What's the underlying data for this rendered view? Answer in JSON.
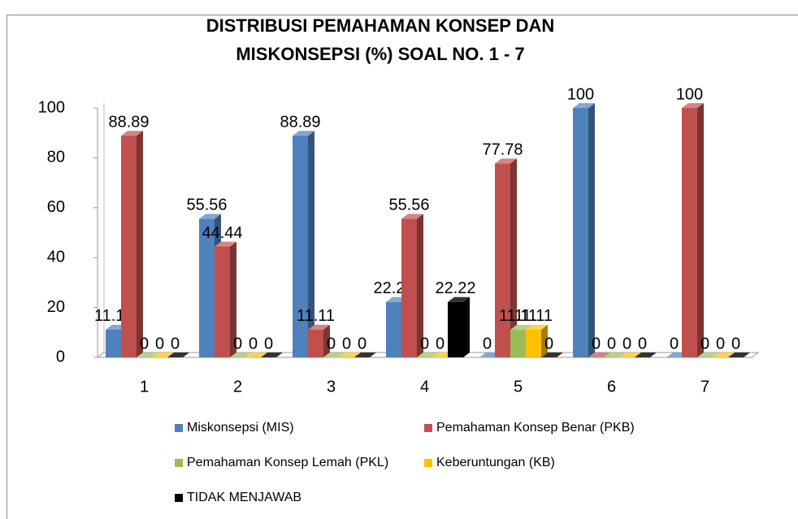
{
  "chart_data": {
    "type": "bar3d",
    "title": [
      "DISTRIBUSI PEMAHAMAN KONSEP DAN",
      "MISKONSEPSI (%) SOAL NO. 1 - 7"
    ],
    "categories": [
      "1",
      "2",
      "3",
      "4",
      "5",
      "6",
      "7"
    ],
    "series": [
      {
        "name": "Miskonsepsi (MIS)",
        "color": "#4f81bd",
        "values": [
          11.11,
          55.56,
          88.89,
          22.22,
          0,
          100,
          0
        ]
      },
      {
        "name": "Pemahaman Konsep Benar (PKB)",
        "color": "#c0504d",
        "values": [
          88.89,
          44.44,
          11.11,
          55.56,
          77.78,
          0,
          100
        ]
      },
      {
        "name": "Pemahaman Konsep Lemah (PKL)",
        "color": "#9bbb59",
        "values": [
          0,
          0,
          0,
          0,
          11.11,
          0,
          0
        ]
      },
      {
        "name": "Keberuntungan (KB)",
        "color": "#ffc000",
        "values": [
          0,
          0,
          0,
          0,
          11.11,
          0,
          0
        ]
      },
      {
        "name": "TIDAK MENJAWAB",
        "color": "#000000",
        "values": [
          0,
          0,
          0,
          22.22,
          0,
          0,
          0
        ]
      }
    ],
    "ylim": [
      0,
      100
    ],
    "yticks": [
      0,
      20,
      40,
      60,
      80,
      100
    ],
    "legend": "bottom"
  }
}
